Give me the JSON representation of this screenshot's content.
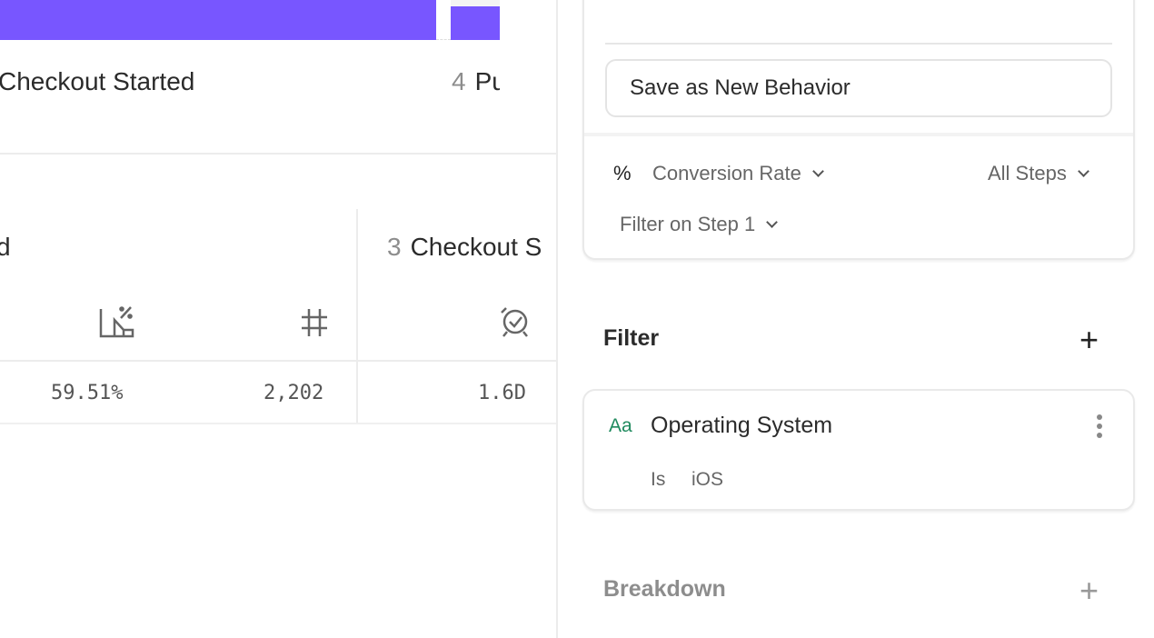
{
  "chart_bars": {
    "color": "#7856ff"
  },
  "steps": [
    {
      "number": "",
      "label": "Checkout Started"
    },
    {
      "number": "4",
      "label": "Pu"
    }
  ],
  "table": {
    "partial_header": "d",
    "step3": {
      "number": "3",
      "label": "Checkout S"
    },
    "values": {
      "conversion": "59.51%",
      "count": "2,202",
      "time": "1.6D"
    }
  },
  "panel": {
    "save_label": "Save as New Behavior",
    "measure_icon": "%",
    "measure": "Conversion Rate",
    "steps_select": "All Steps",
    "filter_step": "Filter on Step 1",
    "filter_title": "Filter",
    "filter_item": {
      "type_icon": "Aa",
      "property": "Operating System",
      "operator": "Is",
      "value": "iOS",
      "accent": "#1f8a5e"
    },
    "breakdown_title": "Breakdown"
  }
}
